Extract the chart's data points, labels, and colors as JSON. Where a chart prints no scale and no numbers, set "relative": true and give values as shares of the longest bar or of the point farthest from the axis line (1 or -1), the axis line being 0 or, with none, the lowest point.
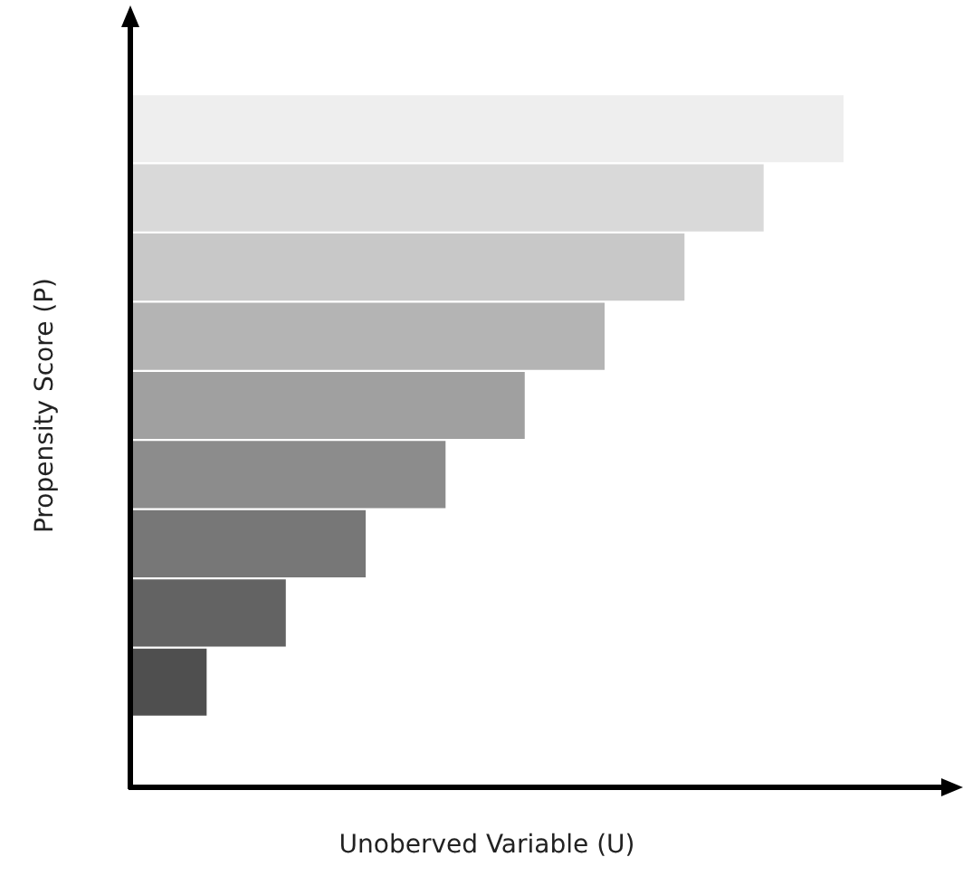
{
  "chart_data": {
    "type": "bar",
    "orientation": "horizontal",
    "relative": true,
    "xlabel": "Unoberved Variable (U)",
    "ylabel": "Propensity Score (P)",
    "categories": [
      null,
      null,
      null,
      null,
      null,
      null,
      null,
      null,
      null
    ],
    "values": [
      1,
      0.888,
      0.777,
      0.665,
      0.553,
      0.442,
      0.33,
      0.218,
      0.107
    ],
    "colors": [
      "#eeeeee",
      "#d9d9d9",
      "#c8c8c8",
      "#b4b4b4",
      "#a0a0a0",
      "#8c8c8c",
      "#777777",
      "#636363",
      "#4f4f4f"
    ]
  }
}
